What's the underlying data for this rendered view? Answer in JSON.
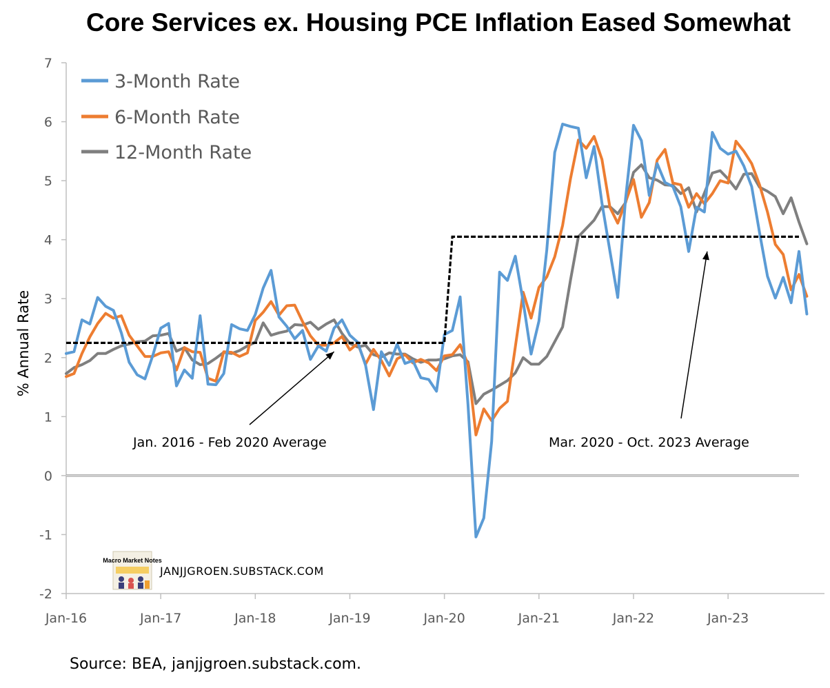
{
  "chart_data": {
    "type": "line",
    "title": "Core Services ex. Housing PCE Inflation Eased Somewhat",
    "ylabel": "% Annual Rate",
    "xlabel": "",
    "ylim": [
      -2,
      7
    ],
    "yticks": [
      -2,
      -1,
      0,
      1,
      2,
      3,
      4,
      5,
      6,
      7
    ],
    "x_start": "Jan-16",
    "x_end": "Oct-23",
    "xtick_labels": [
      "Jan-16",
      "Jan-17",
      "Jan-18",
      "Jan-19",
      "Jan-20",
      "Jan-21",
      "Jan-22",
      "Jan-23"
    ],
    "xtick_months_from_start": [
      0,
      12,
      24,
      36,
      48,
      60,
      72,
      84
    ],
    "legend_position": "top-left",
    "grid": false,
    "series": [
      {
        "name": "3-Month Rate",
        "color": "#5b9bd5",
        "values": [
          2.07,
          2.1,
          2.64,
          2.57,
          3.02,
          2.87,
          2.8,
          2.42,
          1.92,
          1.71,
          1.64,
          2.04,
          2.5,
          2.58,
          1.52,
          1.79,
          1.65,
          2.71,
          1.55,
          1.54,
          1.73,
          2.56,
          2.49,
          2.46,
          2.73,
          3.18,
          3.48,
          2.69,
          2.53,
          2.32,
          2.46,
          1.97,
          2.2,
          2.11,
          2.5,
          2.64,
          2.38,
          2.26,
          1.87,
          1.12,
          2.1,
          1.87,
          2.23,
          1.9,
          1.95,
          1.66,
          1.63,
          1.43,
          2.39,
          2.46,
          3.03,
          1.2,
          -1.04,
          -0.72,
          0.58,
          3.45,
          3.31,
          3.72,
          2.95,
          2.06,
          2.62,
          3.83,
          5.48,
          5.96,
          5.92,
          5.89,
          5.05,
          5.58,
          4.62,
          3.81,
          3.02,
          4.7,
          5.94,
          5.68,
          4.75,
          5.29,
          4.97,
          4.9,
          4.56,
          3.8,
          4.55,
          4.47,
          5.82,
          5.55,
          5.45,
          5.5,
          5.25,
          4.9,
          4.12,
          3.38,
          3.01,
          3.36,
          2.93,
          3.8,
          2.74
        ]
      },
      {
        "name": "6-Month Rate",
        "color": "#ed7d31",
        "values": [
          1.68,
          1.73,
          2.07,
          2.35,
          2.58,
          2.75,
          2.67,
          2.71,
          2.38,
          2.2,
          2.02,
          2.02,
          2.08,
          2.1,
          1.79,
          2.17,
          2.1,
          2.09,
          1.65,
          1.6,
          2.1,
          2.09,
          2.02,
          2.08,
          2.63,
          2.77,
          2.95,
          2.72,
          2.88,
          2.89,
          2.61,
          2.37,
          2.21,
          2.21,
          2.25,
          2.36,
          2.13,
          2.24,
          1.89,
          2.14,
          1.95,
          1.69,
          1.98,
          2.05,
          1.91,
          1.97,
          1.91,
          1.78,
          2.03,
          2.05,
          2.22,
          1.88,
          0.69,
          1.13,
          0.93,
          1.14,
          1.26,
          2.18,
          3.11,
          2.67,
          3.19,
          3.37,
          3.71,
          4.24,
          5.03,
          5.69,
          5.55,
          5.75,
          5.36,
          4.55,
          4.28,
          4.64,
          5.02,
          4.38,
          4.63,
          5.35,
          5.53,
          4.96,
          4.93,
          4.55,
          4.78,
          4.61,
          4.78,
          5.0,
          4.96,
          5.67,
          5.5,
          5.29,
          4.93,
          4.47,
          3.92,
          3.75,
          3.15,
          3.41,
          3.04
        ]
      },
      {
        "name": "12-Month Rate",
        "color": "#7f7f7f",
        "values": [
          1.73,
          1.83,
          1.88,
          1.95,
          2.07,
          2.07,
          2.14,
          2.2,
          2.23,
          2.27,
          2.28,
          2.37,
          2.38,
          2.41,
          2.11,
          2.17,
          1.96,
          1.88,
          1.9,
          1.99,
          2.09,
          2.07,
          2.12,
          2.2,
          2.26,
          2.59,
          2.38,
          2.42,
          2.45,
          2.56,
          2.55,
          2.6,
          2.48,
          2.57,
          2.64,
          2.41,
          2.24,
          2.18,
          2.21,
          2.05,
          2.01,
          2.08,
          2.06,
          2.06,
          1.98,
          1.92,
          1.96,
          1.96,
          1.98,
          2.03,
          2.05,
          1.93,
          1.22,
          1.38,
          1.45,
          1.53,
          1.61,
          1.74,
          2.0,
          1.89,
          1.89,
          2.02,
          2.27,
          2.52,
          3.31,
          4.05,
          4.19,
          4.33,
          4.56,
          4.56,
          4.44,
          4.63,
          5.14,
          5.27,
          5.05,
          5.01,
          4.93,
          4.92,
          4.78,
          4.88,
          4.47,
          4.79,
          5.13,
          5.17,
          5.03,
          4.86,
          5.11,
          5.12,
          4.89,
          4.82,
          4.73,
          4.44,
          4.71,
          4.3,
          3.93
        ]
      },
      {
        "name": "",
        "style": "dashed",
        "color": "#000000",
        "segments": [
          {
            "from": "Jan-16",
            "to": "Jan-20",
            "value": 2.25
          },
          {
            "from": "Feb-20",
            "to": "Oct-23",
            "value": 4.05
          }
        ]
      }
    ],
    "annotations": [
      {
        "text": "Jan. 2016 - Feb 2020 Average",
        "arrow_to": {
          "x": "Nov-18",
          "y": 2.1
        }
      },
      {
        "text": "Mar. 2020 - Oct. 2023 Average",
        "arrow_to": {
          "x": "Oct-22",
          "y": 3.8
        }
      }
    ],
    "zero_line": true
  },
  "logo": {
    "title": "Macro Market Notes",
    "label": "JANJJGROEN.SUBSTACK.COM"
  },
  "source": "Source: BEA, janjjgroen.substack.com."
}
